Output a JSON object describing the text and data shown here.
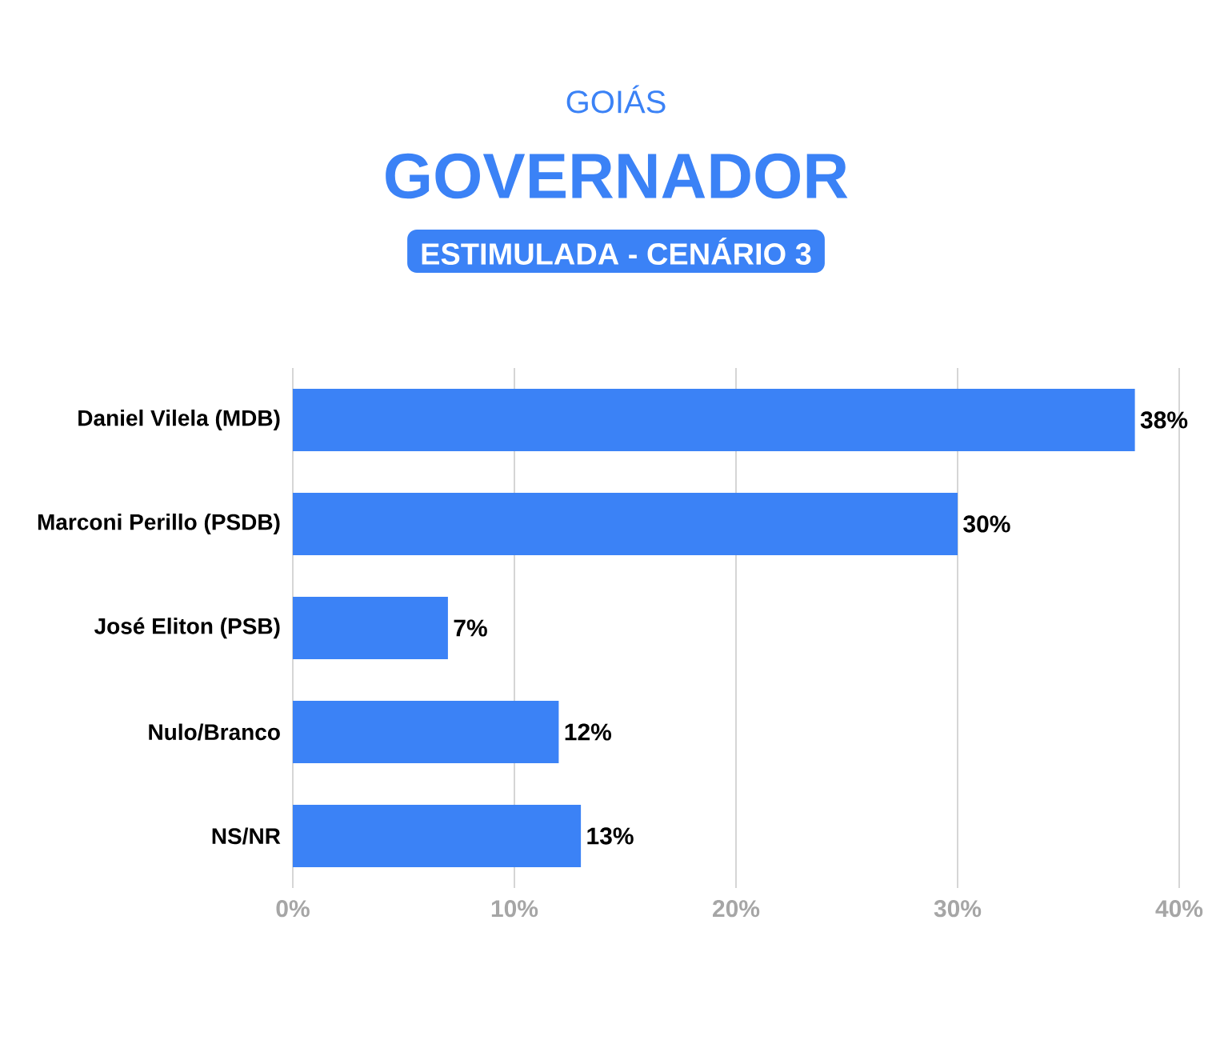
{
  "chart_data": {
    "type": "bar",
    "orientation": "horizontal",
    "title": "GOVERNADOR",
    "subtitle": "ESTIMULADA - CENÁRIO 3",
    "annotations": [
      "GOIÁS"
    ],
    "categories": [
      "Daniel Vilela (MDB)",
      "Marconi Perillo (PSDB)",
      "José Eliton (PSB)",
      "Nulo/Branco",
      "NS/NR"
    ],
    "values": [
      38,
      30,
      7,
      12,
      13
    ],
    "value_labels": [
      "38%",
      "30%",
      "7%",
      "12%",
      "13%"
    ],
    "color": "#3b82f6",
    "xlim": [
      0,
      40
    ],
    "xticks": [
      {
        "value": 0,
        "label": "0%"
      },
      {
        "value": 10,
        "label": "10%"
      },
      {
        "value": 20,
        "label": "20%"
      },
      {
        "value": 30,
        "label": "30%"
      },
      {
        "value": 40,
        "label": "40%"
      }
    ],
    "grid": "x"
  }
}
